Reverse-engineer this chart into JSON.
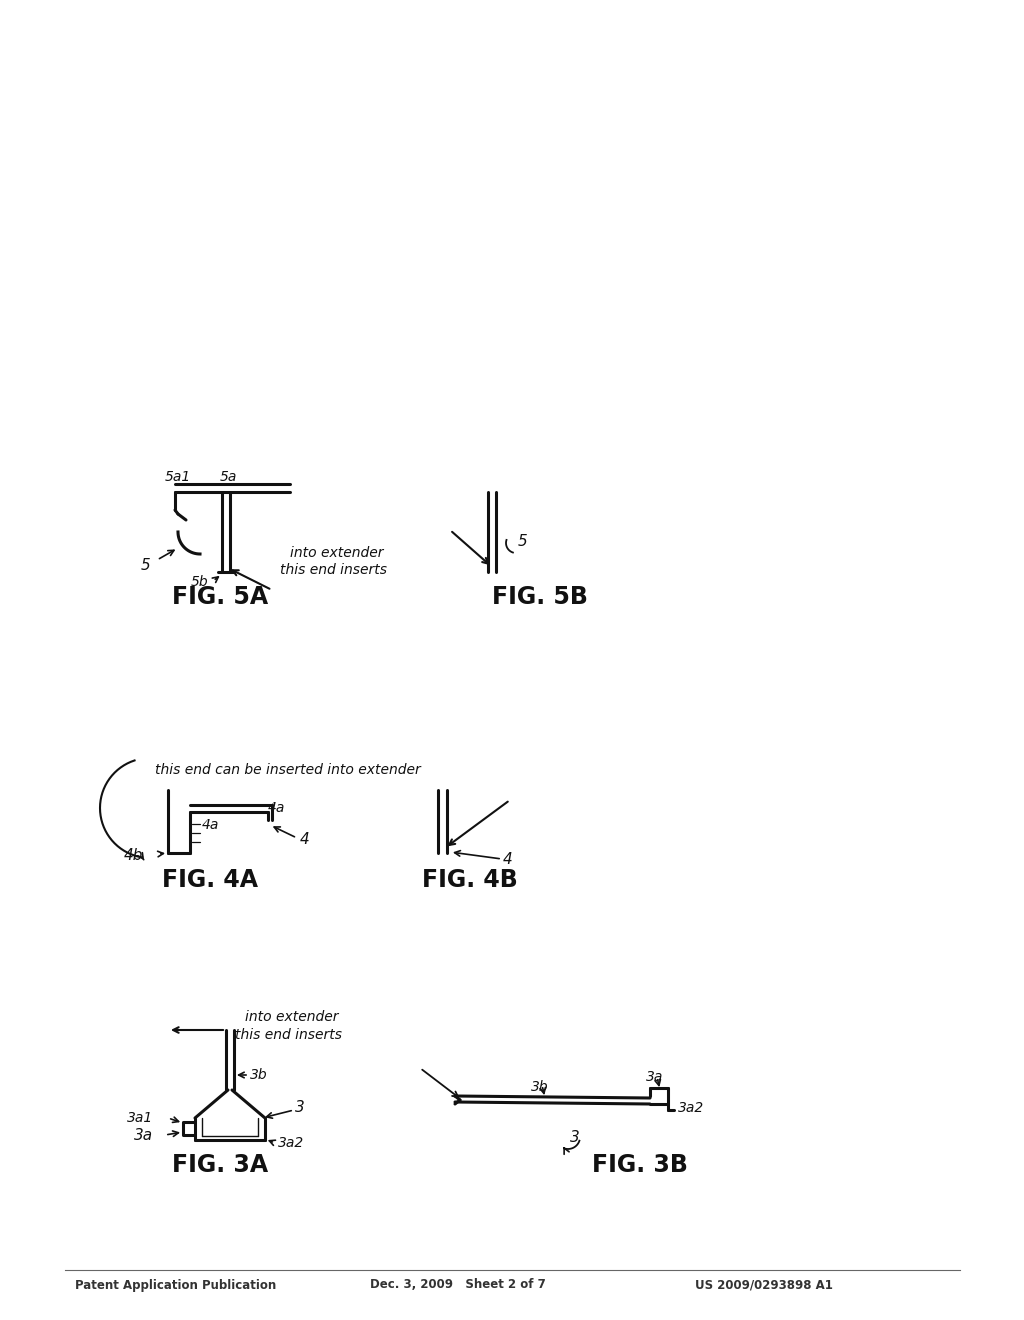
{
  "bg_color": "#ffffff",
  "text_color": "#000000",
  "header_left": "Patent Application Publication",
  "header_mid": "Dec. 3, 2009   Sheet 2 of 7",
  "header_right": "US 2009/0293898 A1",
  "fig3a_label": "FIG. 3A",
  "fig3b_label": "FIG. 3B",
  "fig4a_label": "FIG. 4A",
  "fig4b_label": "FIG. 4B",
  "fig5a_label": "FIG. 5A",
  "fig5b_label": "FIG. 5B",
  "note_3a": "this end inserts\ninto extender",
  "note_4": "this end can be inserted into extender",
  "note_5a": "this end inserts\ninto extender"
}
